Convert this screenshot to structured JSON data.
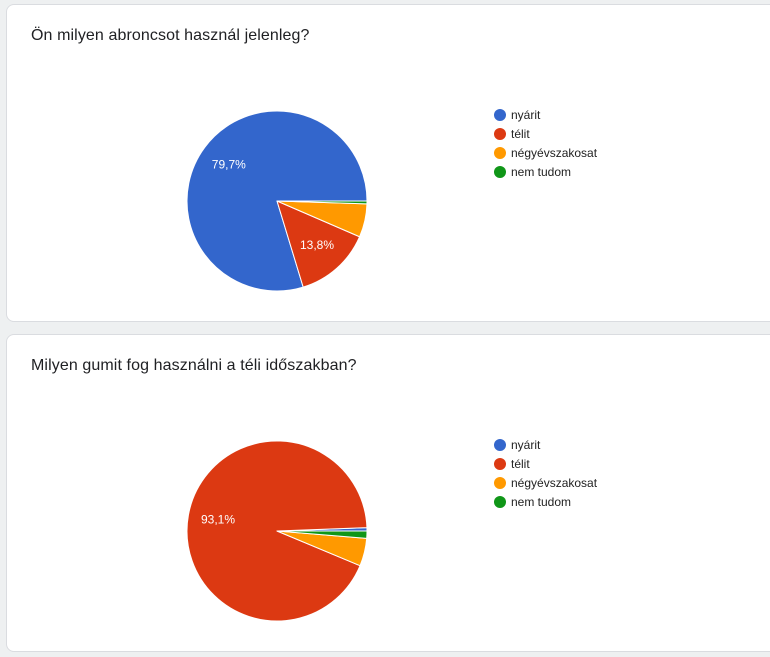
{
  "chart_data": [
    {
      "type": "pie",
      "title": "Ön milyen abroncsot használ jelenleg?",
      "categories": [
        "nyárit",
        "télit",
        "négyévszakosat",
        "nem tudom"
      ],
      "values": [
        79.7,
        13.8,
        6.0,
        0.5
      ],
      "data_labels": [
        "79,7%",
        "13,8%",
        "",
        ""
      ],
      "colors": [
        "#3366cc",
        "#dc3912",
        "#ff9900",
        "#109618"
      ],
      "legend_position": "right"
    },
    {
      "type": "pie",
      "title": "Milyen gumit fog használni a téli időszakban?",
      "categories": [
        "nyárit",
        "télit",
        "négyévszakosat",
        "nem tudom"
      ],
      "values": [
        0.6,
        93.1,
        5.0,
        1.3
      ],
      "data_labels": [
        "",
        "93,1%",
        "",
        ""
      ],
      "colors": [
        "#3366cc",
        "#dc3912",
        "#ff9900",
        "#109618"
      ],
      "legend_position": "right"
    }
  ]
}
